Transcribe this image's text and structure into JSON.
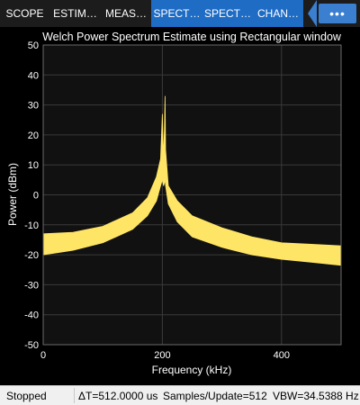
{
  "tabs": [
    {
      "label": "SCOPE",
      "state": "normal"
    },
    {
      "label": "ESTIM…",
      "state": "normal"
    },
    {
      "label": "MEAS…",
      "state": "normal"
    },
    {
      "label": "SPECT…",
      "state": "active"
    },
    {
      "label": "SPECT…",
      "state": "active"
    },
    {
      "label": "CHAN…",
      "state": "active"
    }
  ],
  "more_label": "•••",
  "chart_data": {
    "type": "line",
    "title": "Welch Power Spectrum Estimate using Rectangular window",
    "xlabel": "Frequency (kHz)",
    "ylabel": "Power (dBm)",
    "xlim": [
      0,
      500
    ],
    "ylim": [
      -50,
      50
    ],
    "xticks": [
      0,
      200,
      400
    ],
    "yticks": [
      50,
      40,
      30,
      20,
      10,
      0,
      -10,
      -20,
      -30,
      -40,
      -50
    ],
    "grid": true,
    "series_color": "#ffe566",
    "series": [
      {
        "band_upper": [
          [
            0,
            -13
          ],
          [
            50,
            -12.5
          ],
          [
            100,
            -10.5
          ],
          [
            150,
            -6
          ],
          [
            175,
            -1
          ],
          [
            190,
            6
          ],
          [
            197,
            12
          ],
          [
            200,
            27
          ],
          [
            202,
            12
          ],
          [
            203.5,
            22
          ],
          [
            204.5,
            33
          ],
          [
            205.5,
            15
          ],
          [
            210,
            3
          ],
          [
            225,
            -2
          ],
          [
            250,
            -7
          ],
          [
            300,
            -11
          ],
          [
            350,
            -14
          ],
          [
            400,
            -16
          ],
          [
            450,
            -16.5
          ],
          [
            500,
            -17
          ]
        ],
        "band_lower": [
          [
            0,
            -20
          ],
          [
            50,
            -18.5
          ],
          [
            100,
            -16
          ],
          [
            150,
            -11.5
          ],
          [
            175,
            -7
          ],
          [
            190,
            -2
          ],
          [
            197,
            3
          ],
          [
            200,
            5
          ],
          [
            202,
            3
          ],
          [
            203.5,
            4
          ],
          [
            204.5,
            5
          ],
          [
            205.5,
            3
          ],
          [
            210,
            -3
          ],
          [
            225,
            -9
          ],
          [
            250,
            -14
          ],
          [
            300,
            -17.5
          ],
          [
            350,
            -20
          ],
          [
            400,
            -21.5
          ],
          [
            450,
            -22.5
          ],
          [
            500,
            -23.5
          ]
        ]
      }
    ]
  },
  "status": {
    "state": "Stopped",
    "delta_t": "ΔT=512.0000 us",
    "samples": "Samples/Update=512",
    "vbw": "VBW=34.5388 Hz"
  },
  "colors": {
    "tabbar_bg": "#1c1c1c",
    "tab_active": "#1f6cc5",
    "plot_bg": "#111111",
    "grid": "#3a3a3a",
    "axis_text": "#ffffff"
  }
}
